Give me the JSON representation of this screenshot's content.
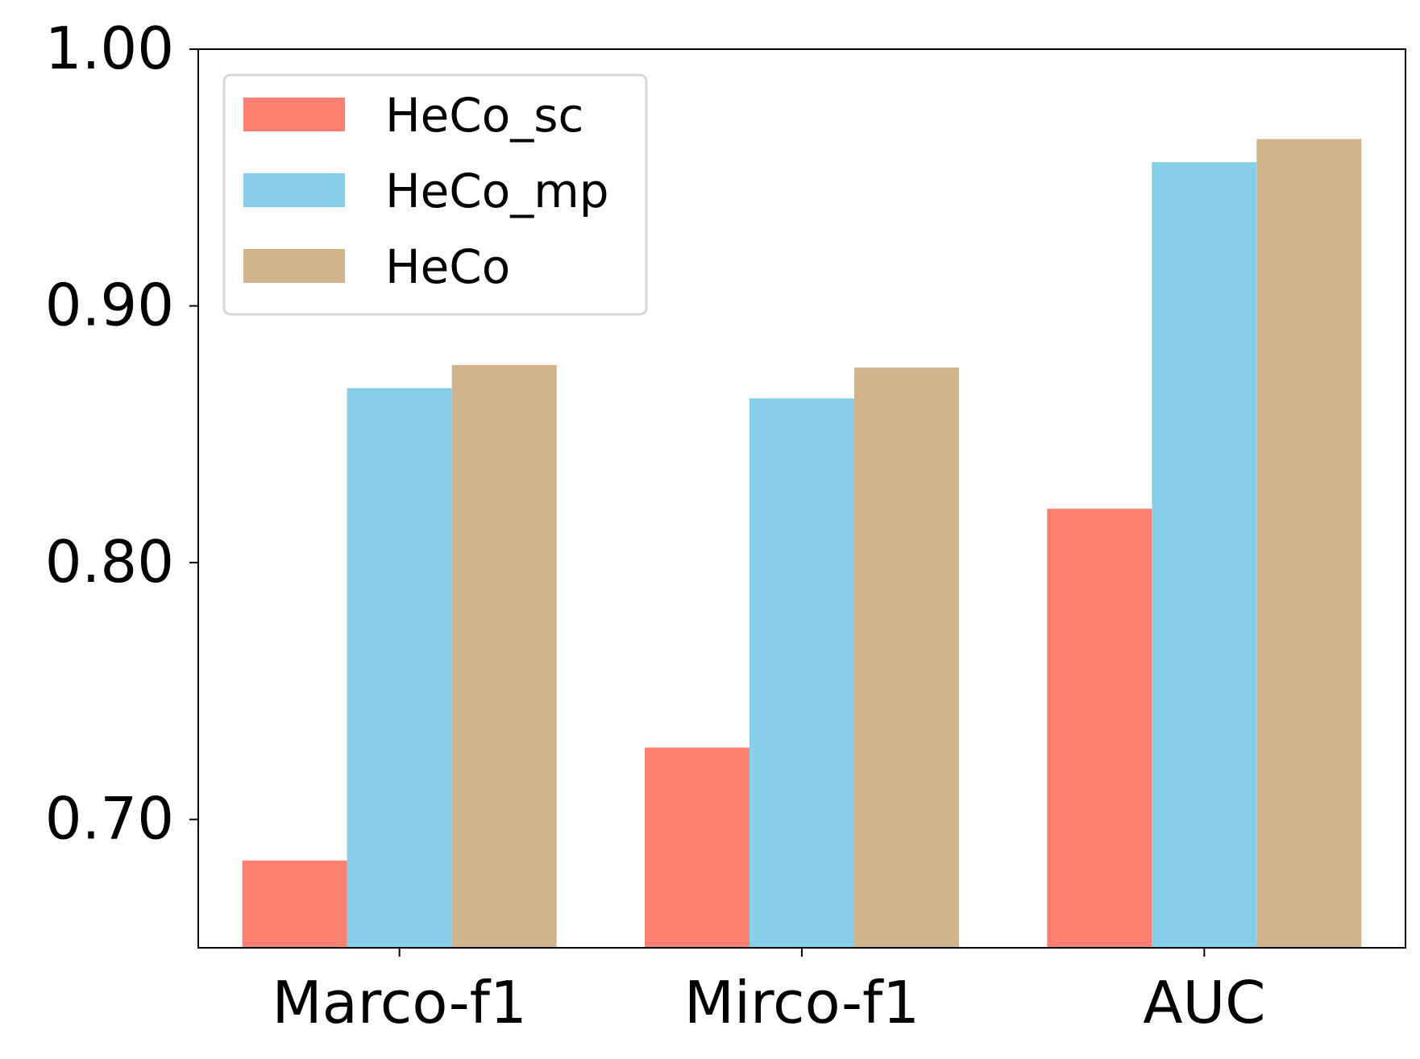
{
  "chart_data": {
    "type": "bar",
    "title": "",
    "xlabel": "",
    "ylabel": "",
    "categories": [
      "Marco-f1",
      "Mirco-f1",
      "AUC"
    ],
    "series": [
      {
        "name": "HeCo_sc",
        "color": "#FA8072",
        "values": [
          0.684,
          0.728,
          0.821
        ]
      },
      {
        "name": "HeCo_mp",
        "color": "#87CEEB",
        "values": [
          0.868,
          0.864,
          0.956
        ]
      },
      {
        "name": "HeCo",
        "color": "#D2B48C",
        "values": [
          0.877,
          0.876,
          0.965
        ]
      }
    ],
    "ylim": [
      0.65,
      1.0
    ],
    "yticks": [
      0.7,
      0.8,
      0.9,
      1.0
    ],
    "ytick_labels": [
      "0.70",
      "0.80",
      "0.90",
      "1.00"
    ],
    "grid": false,
    "legend_position": "top-left"
  }
}
